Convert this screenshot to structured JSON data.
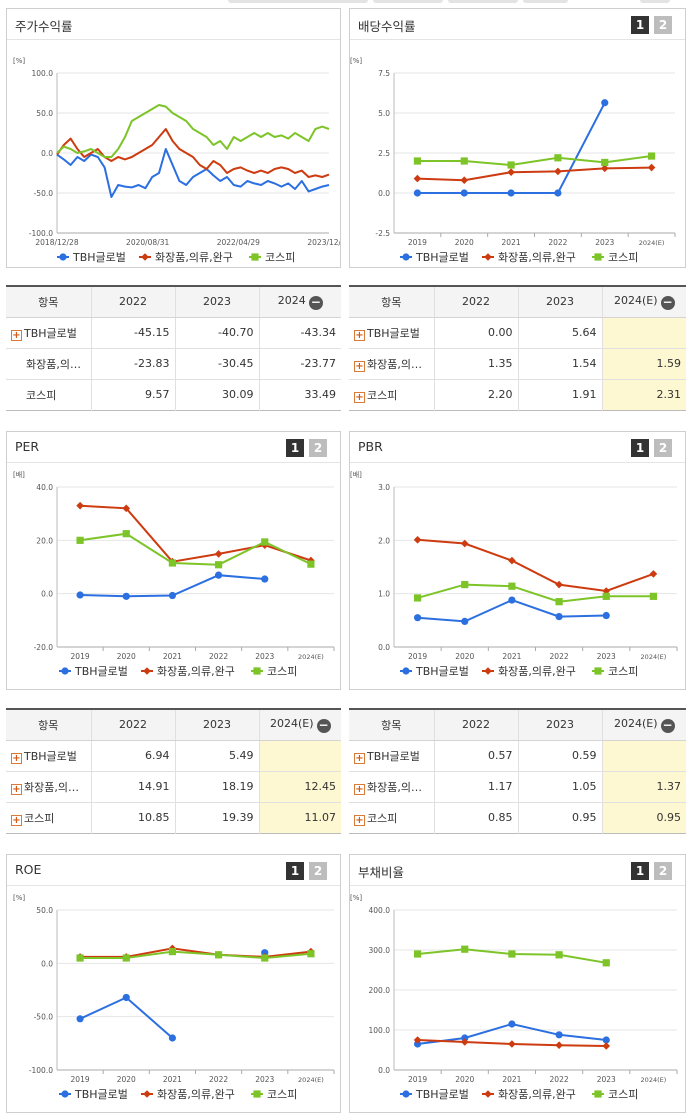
{
  "colors": {
    "tbh": "#2b6fe0",
    "sector": "#cd3b10",
    "kospi": "#7cc428",
    "estimate_bg": "#fdf7d2"
  },
  "legend": {
    "tbh": "TBH글로벌",
    "sector": "화장품,의류,완구",
    "kospi": "코스피"
  },
  "pager": {
    "p1": "1",
    "p2": "2"
  },
  "stock_return": {
    "title": "주가수익률",
    "chart_data": {
      "type": "line",
      "title": "주가수익률",
      "ylabel": "[%]",
      "ylim": [
        -100,
        100
      ],
      "yticks": [
        "100.0",
        "50.0",
        "0.0",
        "-50.0",
        "-100.0"
      ],
      "xticks": [
        "2018/12/28",
        "2020/08/31",
        "2022/04/29",
        "2023/12/28"
      ],
      "x": [
        0,
        0.025,
        0.05,
        0.075,
        0.1,
        0.125,
        0.15,
        0.175,
        0.2,
        0.225,
        0.25,
        0.275,
        0.3,
        0.325,
        0.35,
        0.375,
        0.4,
        0.425,
        0.45,
        0.475,
        0.5,
        0.525,
        0.55,
        0.575,
        0.6,
        0.625,
        0.65,
        0.675,
        0.7,
        0.725,
        0.75,
        0.775,
        0.8,
        0.825,
        0.85,
        0.875,
        0.9,
        0.925,
        0.95,
        0.975,
        1.0
      ],
      "series": [
        {
          "name": "TBH글로벌",
          "values": [
            -2,
            -8,
            -15,
            -5,
            -10,
            -2,
            -5,
            -18,
            -55,
            -40,
            -42,
            -43,
            -40,
            -44,
            -30,
            -25,
            5,
            -15,
            -35,
            -40,
            -30,
            -25,
            -20,
            -28,
            -35,
            -30,
            -40,
            -42,
            -35,
            -38,
            -40,
            -35,
            -38,
            -42,
            -38,
            -45,
            -35,
            -48,
            -45,
            -42,
            -40
          ]
        },
        {
          "name": "화장품,의류,완구",
          "values": [
            -2,
            10,
            18,
            5,
            -5,
            0,
            5,
            -5,
            -10,
            -5,
            -8,
            -5,
            0,
            5,
            10,
            20,
            30,
            15,
            5,
            0,
            -5,
            -15,
            -20,
            -10,
            -15,
            -25,
            -20,
            -18,
            -22,
            -25,
            -22,
            -25,
            -20,
            -18,
            -20,
            -25,
            -22,
            -30,
            -28,
            -30,
            -27
          ]
        },
        {
          "name": "코스피",
          "values": [
            0,
            8,
            5,
            0,
            2,
            5,
            0,
            -5,
            -5,
            5,
            20,
            40,
            45,
            50,
            55,
            60,
            58,
            50,
            45,
            40,
            30,
            25,
            20,
            10,
            15,
            5,
            20,
            15,
            20,
            25,
            20,
            25,
            20,
            22,
            18,
            25,
            20,
            15,
            30,
            33,
            30
          ]
        }
      ]
    },
    "table": {
      "headers": [
        "항목",
        "2022",
        "2023",
        "2024"
      ],
      "rows": [
        {
          "label": "TBH글로벌",
          "plus": true,
          "values": [
            "-45.15",
            "-40.70",
            "-43.34"
          ]
        },
        {
          "label": "화장품,의…",
          "plus": false,
          "values": [
            "-23.83",
            "-30.45",
            "-23.77"
          ]
        },
        {
          "label": "코스피",
          "plus": false,
          "values": [
            "9.57",
            "30.09",
            "33.49"
          ]
        }
      ]
    }
  },
  "dividend": {
    "title": "배당수익률",
    "chart_data": {
      "type": "line",
      "title": "배당수익률",
      "ylabel": "[%]",
      "ylim": [
        -2.5,
        7.5
      ],
      "yticks": [
        "7.5",
        "5.0",
        "2.5",
        "0.0",
        "-2.5"
      ],
      "categories": [
        "2019",
        "2020",
        "2021",
        "2022",
        "2023",
        "2024(E)"
      ],
      "series": [
        {
          "name": "TBH글로벌",
          "values": [
            0.0,
            0.0,
            0.0,
            0.0,
            5.64,
            null
          ]
        },
        {
          "name": "화장품,의류,완구",
          "values": [
            0.9,
            0.8,
            1.3,
            1.35,
            1.54,
            1.59
          ]
        },
        {
          "name": "코스피",
          "values": [
            2.0,
            2.0,
            1.75,
            2.2,
            1.91,
            2.31
          ]
        }
      ]
    },
    "table": {
      "headers": [
        "항목",
        "2022",
        "2023",
        "2024(E)"
      ],
      "rows": [
        {
          "label": "TBH글로벌",
          "plus": true,
          "values": [
            "0.00",
            "5.64",
            ""
          ]
        },
        {
          "label": "화장품,의…",
          "plus": true,
          "values": [
            "1.35",
            "1.54",
            "1.59"
          ]
        },
        {
          "label": "코스피",
          "plus": true,
          "values": [
            "2.20",
            "1.91",
            "2.31"
          ]
        }
      ]
    }
  },
  "per": {
    "title": "PER",
    "chart_data": {
      "type": "line",
      "title": "PER",
      "ylabel": "[배]",
      "ylim": [
        -20,
        40
      ],
      "yticks": [
        "40.0",
        "20.0",
        "0.0",
        "-20.0"
      ],
      "categories": [
        "2019",
        "2020",
        "2021",
        "2022",
        "2023",
        "2024(E)"
      ],
      "series": [
        {
          "name": "TBH글로벌",
          "values": [
            -0.5,
            -1.0,
            -0.7,
            6.94,
            5.49,
            null
          ]
        },
        {
          "name": "화장품,의류,완구",
          "values": [
            33.0,
            32.0,
            12.0,
            14.91,
            18.19,
            12.45
          ]
        },
        {
          "name": "코스피",
          "values": [
            20.0,
            22.5,
            11.5,
            10.85,
            19.39,
            11.07
          ]
        }
      ]
    },
    "table": {
      "headers": [
        "항목",
        "2022",
        "2023",
        "2024(E)"
      ],
      "rows": [
        {
          "label": "TBH글로벌",
          "plus": true,
          "values": [
            "6.94",
            "5.49",
            ""
          ]
        },
        {
          "label": "화장품,의…",
          "plus": true,
          "values": [
            "14.91",
            "18.19",
            "12.45"
          ]
        },
        {
          "label": "코스피",
          "plus": true,
          "values": [
            "10.85",
            "19.39",
            "11.07"
          ]
        }
      ]
    }
  },
  "pbr": {
    "title": "PBR",
    "chart_data": {
      "type": "line",
      "title": "PBR",
      "ylabel": "[배]",
      "ylim": [
        0,
        3
      ],
      "yticks": [
        "3.0",
        "2.0",
        "1.0",
        "0.0"
      ],
      "categories": [
        "2019",
        "2020",
        "2021",
        "2022",
        "2023",
        "2024(E)"
      ],
      "series": [
        {
          "name": "TBH글로벌",
          "values": [
            0.55,
            0.48,
            0.88,
            0.57,
            0.59,
            null
          ]
        },
        {
          "name": "화장품,의류,완구",
          "values": [
            2.01,
            1.94,
            1.62,
            1.17,
            1.05,
            1.37
          ]
        },
        {
          "name": "코스피",
          "values": [
            0.92,
            1.17,
            1.14,
            0.85,
            0.95,
            0.95
          ]
        }
      ]
    },
    "table": {
      "headers": [
        "항목",
        "2022",
        "2023",
        "2024(E)"
      ],
      "rows": [
        {
          "label": "TBH글로벌",
          "plus": true,
          "values": [
            "0.57",
            "0.59",
            ""
          ]
        },
        {
          "label": "화장품,의…",
          "plus": true,
          "values": [
            "1.17",
            "1.05",
            "1.37"
          ]
        },
        {
          "label": "코스피",
          "plus": true,
          "values": [
            "0.85",
            "0.95",
            "0.95"
          ]
        }
      ]
    }
  },
  "roe": {
    "title": "ROE",
    "chart_data": {
      "type": "line",
      "title": "ROE",
      "ylabel": "[%]",
      "ylim": [
        -100,
        50
      ],
      "yticks": [
        "50.0",
        "0.0",
        "-50.0",
        "-100.0"
      ],
      "categories": [
        "2019",
        "2020",
        "2021",
        "2022",
        "2023",
        "2024(E)"
      ],
      "series": [
        {
          "name": "TBH글로벌",
          "values": [
            -52,
            -32,
            -70,
            null,
            10,
            null
          ]
        },
        {
          "name": "화장품,의류,완구",
          "values": [
            6,
            6,
            14,
            8,
            6,
            11
          ]
        },
        {
          "name": "코스피",
          "values": [
            5,
            5,
            11,
            8,
            5,
            9
          ]
        }
      ]
    }
  },
  "debt": {
    "title": "부채비율",
    "chart_data": {
      "type": "line",
      "title": "부채비율",
      "ylabel": "[%]",
      "ylim": [
        0,
        400
      ],
      "yticks": [
        "400.0",
        "300.0",
        "200.0",
        "100.0",
        "0.0"
      ],
      "categories": [
        "2019",
        "2020",
        "2021",
        "2022",
        "2023",
        "2024(E)"
      ],
      "series": [
        {
          "name": "TBH글로벌",
          "values": [
            65,
            80,
            115,
            88,
            75,
            null
          ]
        },
        {
          "name": "화장품,의류,완구",
          "values": [
            75,
            70,
            65,
            62,
            60,
            null
          ]
        },
        {
          "name": "코스피",
          "values": [
            290,
            302,
            290,
            288,
            268,
            null
          ]
        }
      ]
    }
  }
}
